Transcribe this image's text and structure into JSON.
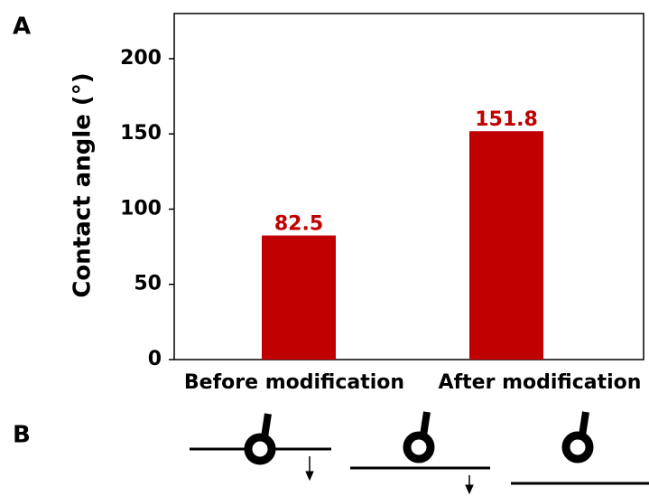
{
  "panel_labels": [
    "A",
    "B"
  ],
  "chart_data": {
    "type": "bar",
    "y_label": "Contact angle (°)",
    "categories": [
      "Before modification",
      "After modification"
    ],
    "values": [
      82.5,
      151.8
    ],
    "color": "#c00000",
    "ylim": [
      0,
      230
    ],
    "yticks": [
      0,
      50,
      100,
      150,
      200
    ],
    "grid": false
  }
}
